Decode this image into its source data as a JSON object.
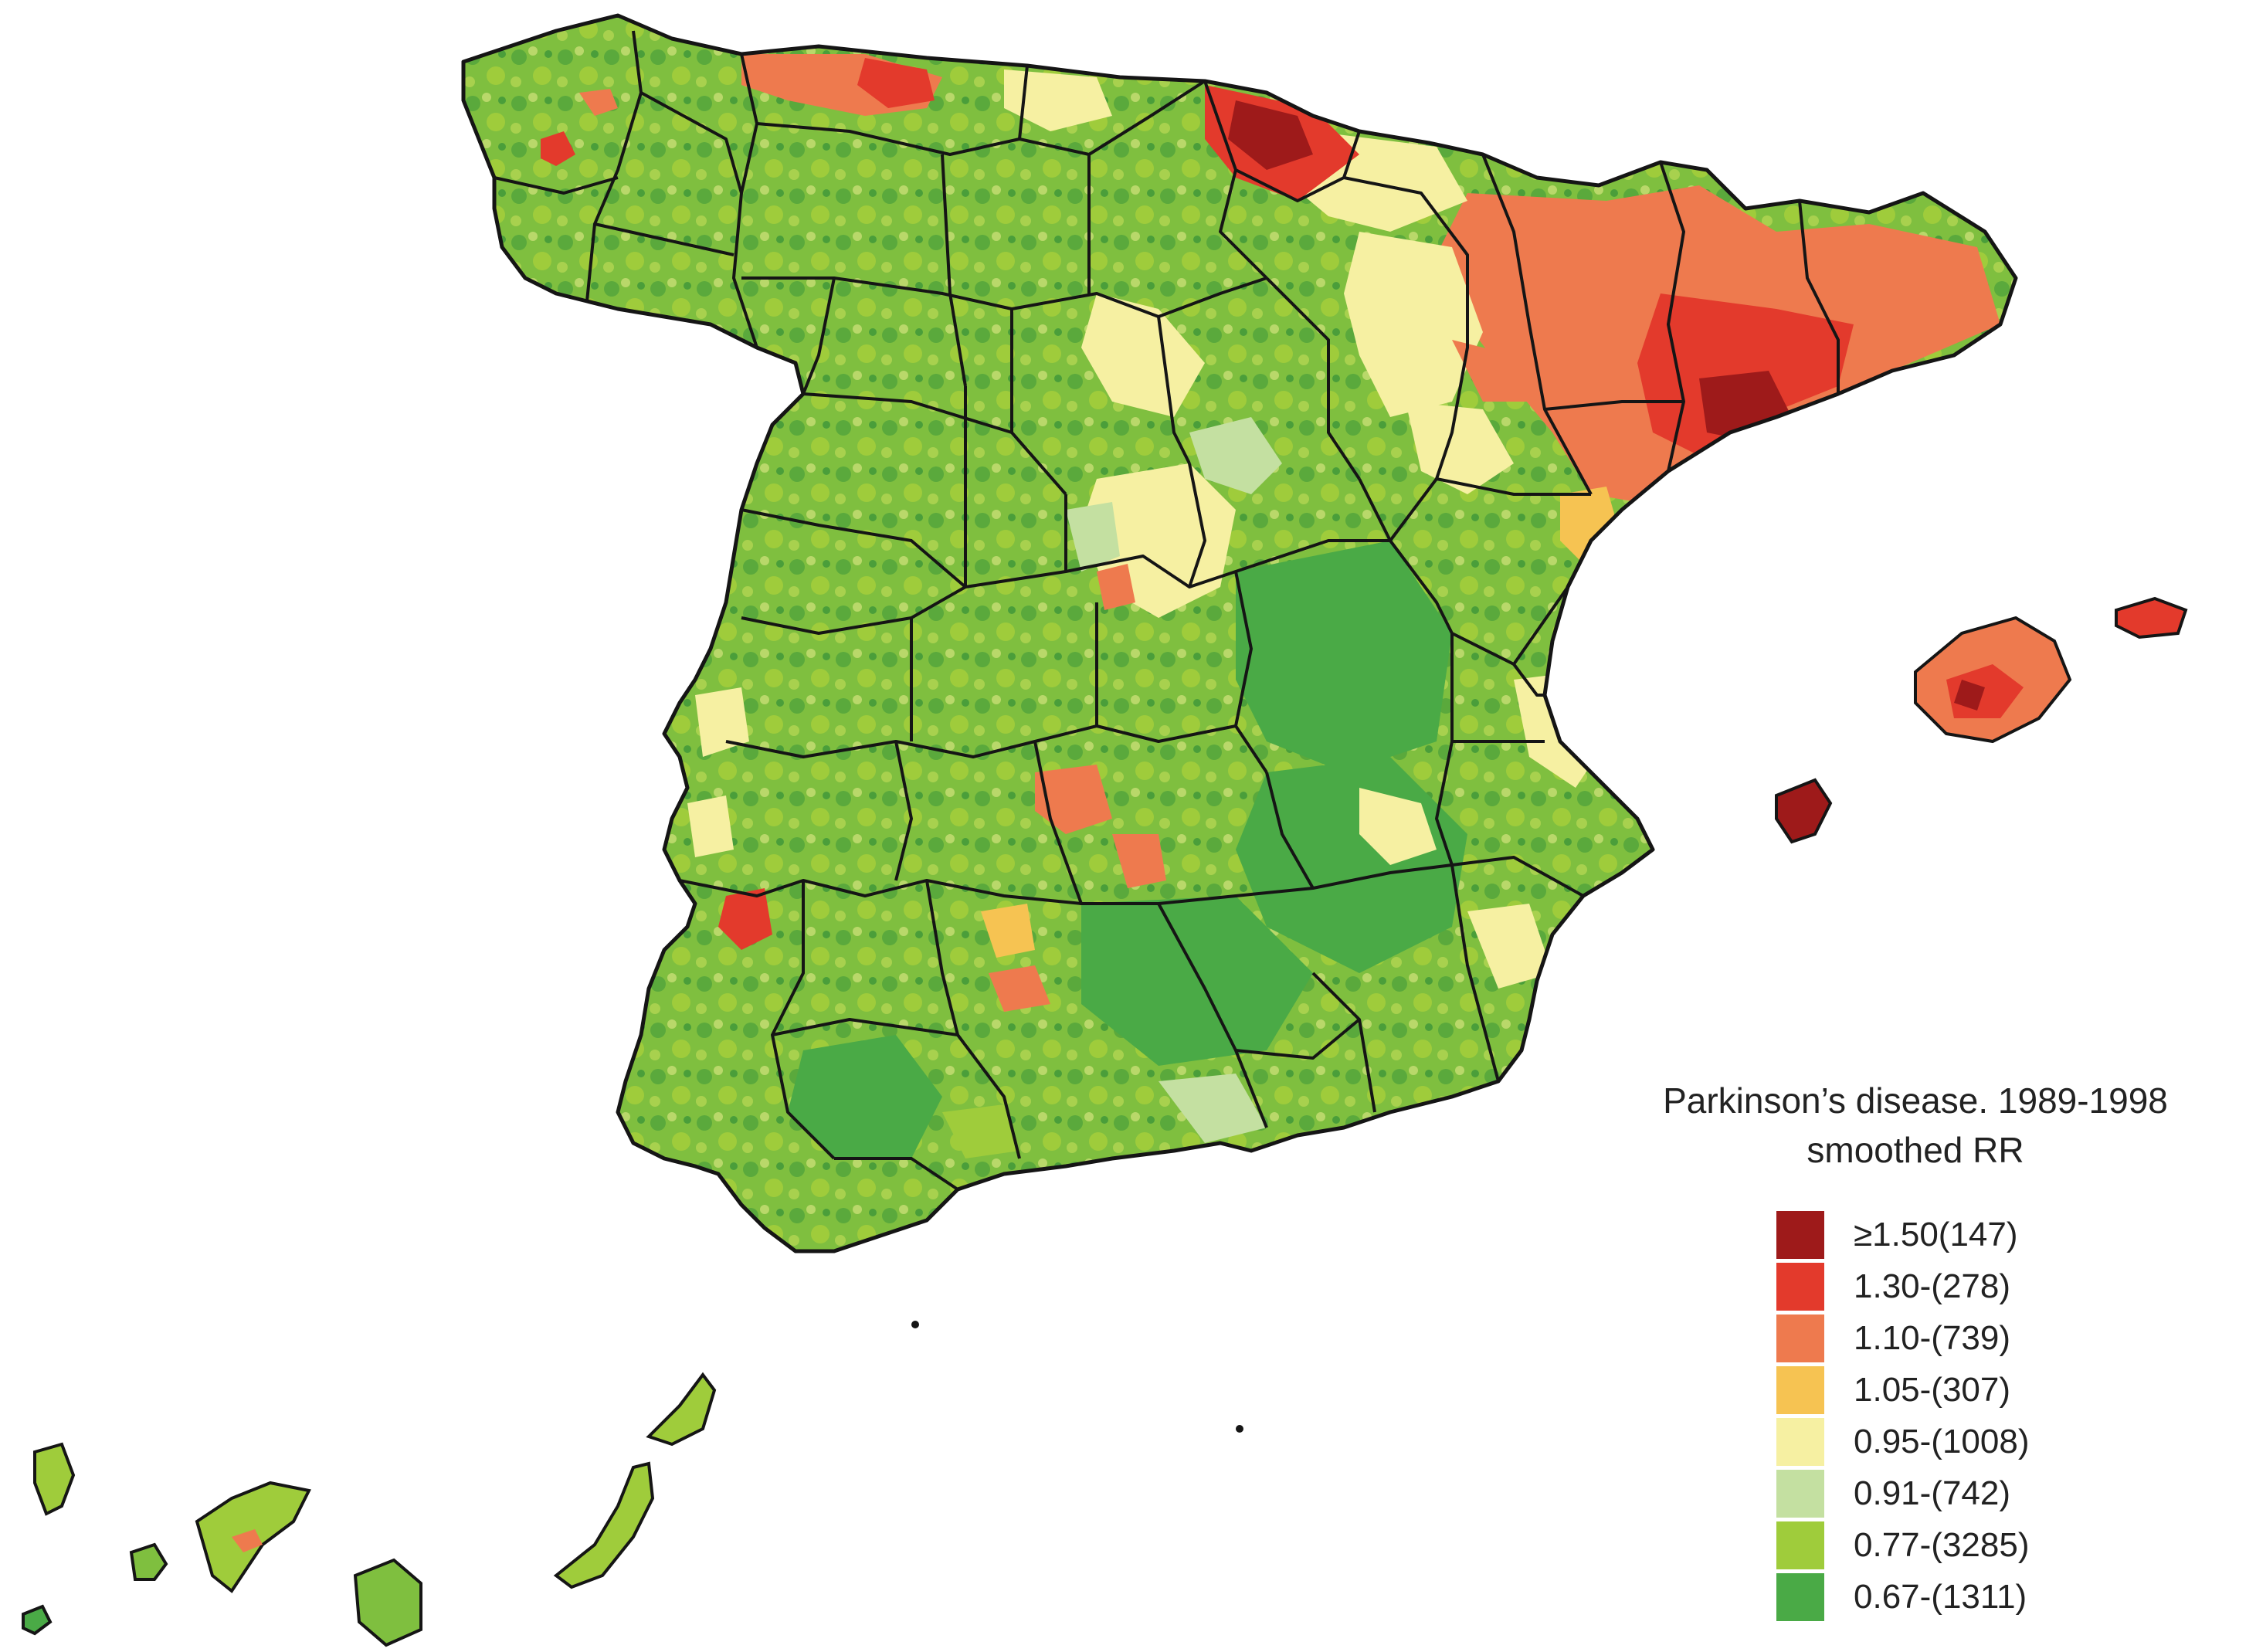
{
  "legend": {
    "title_line1": "Parkinson’s disease. 1989-1998",
    "title_line2": "smoothed RR",
    "classes": [
      {
        "label": "≥1.50(147)",
        "color": "#9e1a1a"
      },
      {
        "label": "1.30-(278)",
        "color": "#e33a2c"
      },
      {
        "label": "1.10-(739)",
        "color": "#ee7a4e"
      },
      {
        "label": "1.05-(307)",
        "color": "#f6c352"
      },
      {
        "label": "0.95-(1008)",
        "color": "#f6f0a2"
      },
      {
        "label": "0.91-(742)",
        "color": "#c4e0a1"
      },
      {
        "label": "0.77-(3285)",
        "color": "#9fcc3b"
      },
      {
        "label": "0.67-(1311)",
        "color": "#4aaa46"
      }
    ]
  }
}
